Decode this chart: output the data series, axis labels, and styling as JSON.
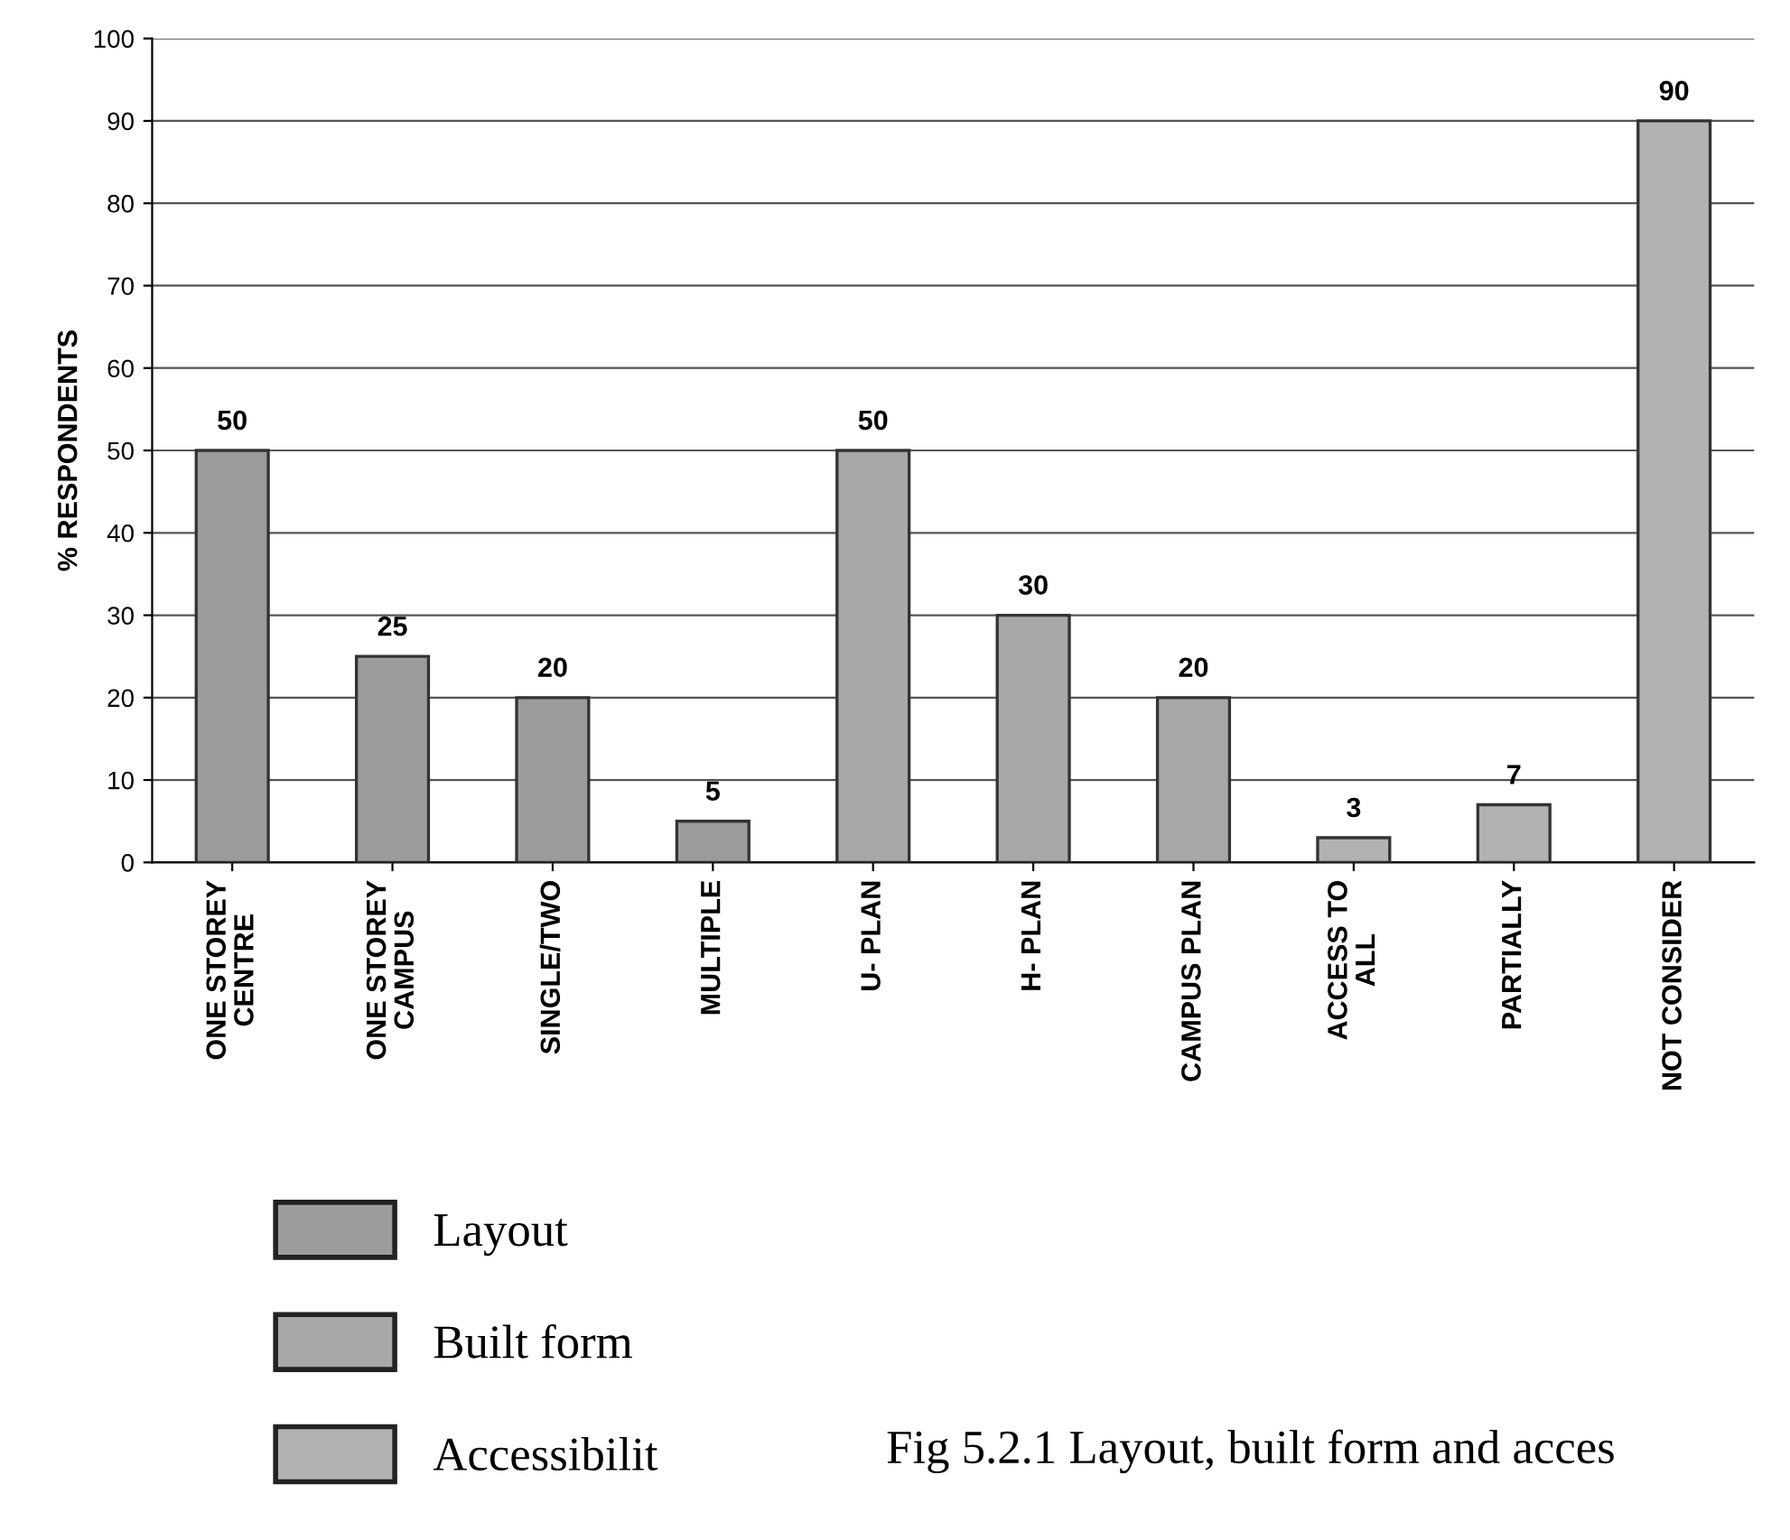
{
  "chart_data": {
    "type": "bar",
    "ylabel": "% RESPONDENTS",
    "categories": [
      "ONE STOREY\nCENTRE",
      "ONE STOREY\nCAMPUS",
      "SINGLE/TWO",
      "MULTIPLE",
      "U- PLAN",
      "H- PLAN",
      "CAMPUS PLAN",
      "ACCESS TO\nALL",
      "PARTIALLY",
      "NOT CONSIDER"
    ],
    "series": [
      {
        "name": "Layout",
        "color": "#9c9c9c",
        "values": [
          50,
          25,
          20,
          5,
          null,
          null,
          null,
          null,
          null,
          null
        ]
      },
      {
        "name": "Built form",
        "color": "#a8a8a8",
        "values": [
          null,
          null,
          null,
          null,
          50,
          30,
          20,
          null,
          null,
          null
        ]
      },
      {
        "name": "Accessibilit",
        "color": "#b2b2b2",
        "values": [
          null,
          null,
          null,
          null,
          null,
          null,
          null,
          3,
          7,
          90
        ]
      }
    ],
    "ylim": [
      0,
      100
    ],
    "yticks": [
      0,
      10,
      20,
      30,
      40,
      50,
      60,
      70,
      80,
      90,
      100
    ],
    "grid": "y",
    "legend": "bottom left",
    "data_labels": true,
    "annotations": [
      "Fig 5.2.1 Layout, built form and acces"
    ]
  }
}
